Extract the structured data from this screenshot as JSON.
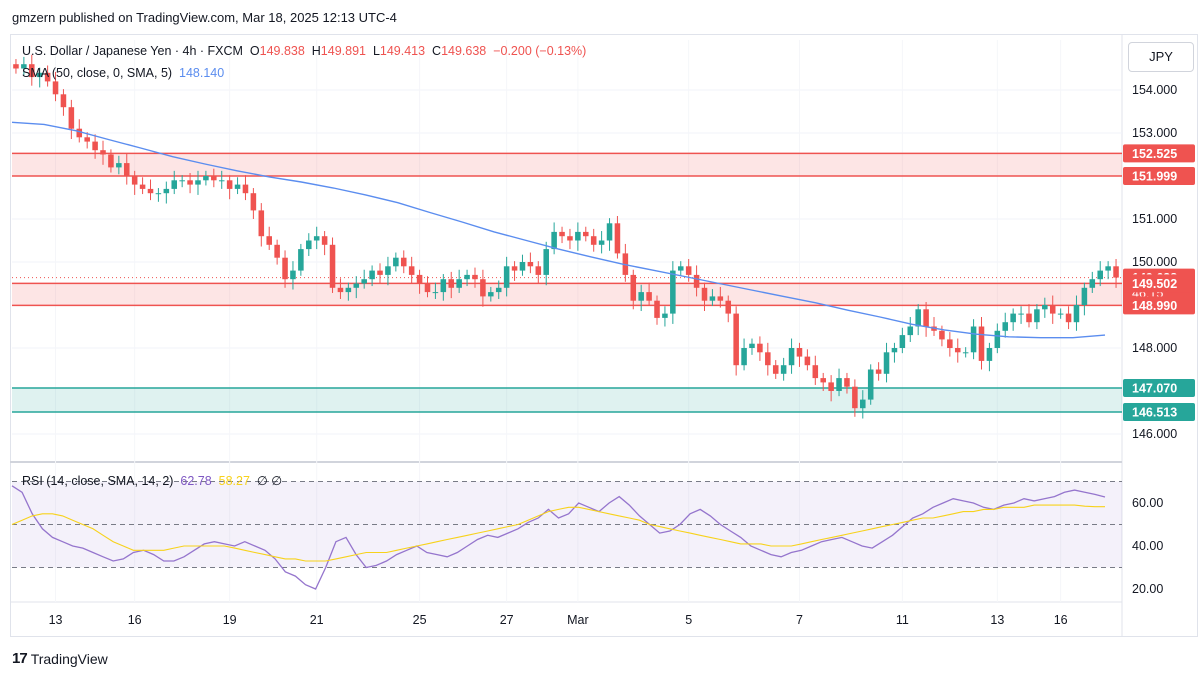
{
  "header": {
    "publisher": "gmzern",
    "text": "gmzern published on TradingView.com, Mar 18, 2025 12:13 UTC-4"
  },
  "legend": {
    "symbol": "U.S. Dollar / Japanese Yen · 4h · FXCM",
    "open_label": "O",
    "open": "149.838",
    "high_label": "H",
    "high": "149.891",
    "low_label": "L",
    "low": "149.413",
    "close_label": "C",
    "close": "149.638",
    "change": "−0.200 (−0.13%)",
    "sma_label": "SMA (50, close, 0, SMA, 5)",
    "sma_value": "148.140",
    "rsi_label": "RSI (14, close, SMA, 14, 2)",
    "rsi_value": "62.78",
    "rsi_ma_value": "58.27",
    "rsi_extra": "∅ ∅"
  },
  "currency": "JPY",
  "footer": {
    "brand": "TradingView",
    "logo_glyph": "17"
  },
  "colors": {
    "up": "#26a69a",
    "down": "#ef5350",
    "sma": "#5b8def",
    "rsi": "#9575cd",
    "rsi_ma": "#f7d21b",
    "resistance_zone": "#ef5350",
    "support_zone": "#26a69a"
  },
  "chart_data": [
    {
      "type": "candlestick",
      "title": "U.S. Dollar / Japanese Yen · 4h · FXCM",
      "ylim": [
        145.6,
        155.0
      ],
      "y_ticks": [
        "154.000",
        "153.000",
        "151.000",
        "150.000",
        "148.000",
        "146.000"
      ],
      "x_ticks": [
        "13",
        "16",
        "19",
        "21",
        "25",
        "27",
        "Mar",
        "5",
        "7",
        "11",
        "13",
        "16"
      ],
      "price_labels": [
        {
          "label": "152.525",
          "value": 152.525,
          "kind": "resistance"
        },
        {
          "label": "151.999",
          "value": 151.999,
          "kind": "resistance"
        },
        {
          "label": "149.638",
          "value": 149.638,
          "kind": "last",
          "countdown": "46:15"
        },
        {
          "label": "149.502",
          "value": 149.502,
          "kind": "resistance"
        },
        {
          "label": "148.990",
          "value": 148.99,
          "kind": "resistance"
        },
        {
          "label": "147.070",
          "value": 147.07,
          "kind": "support"
        },
        {
          "label": "146.513",
          "value": 146.513,
          "kind": "support"
        }
      ],
      "zones": [
        {
          "from": 151.999,
          "to": 152.525,
          "kind": "resistance"
        },
        {
          "from": 148.99,
          "to": 149.502,
          "kind": "resistance"
        },
        {
          "from": 146.513,
          "to": 147.07,
          "kind": "support"
        }
      ],
      "close": [
        154.5,
        154.6,
        154.3,
        154.4,
        154.2,
        153.9,
        153.6,
        153.1,
        152.9,
        152.8,
        152.6,
        152.5,
        152.2,
        152.3,
        152.0,
        151.8,
        151.7,
        151.6,
        151.6,
        151.7,
        151.9,
        151.9,
        151.8,
        151.9,
        152.0,
        151.9,
        151.9,
        151.7,
        151.8,
        151.6,
        151.2,
        150.6,
        150.4,
        150.1,
        149.6,
        149.8,
        150.3,
        150.5,
        150.6,
        150.4,
        149.4,
        149.3,
        149.4,
        149.5,
        149.6,
        149.8,
        149.7,
        149.9,
        150.1,
        149.9,
        149.7,
        149.5,
        149.3,
        149.3,
        149.6,
        149.4,
        149.6,
        149.7,
        149.6,
        149.2,
        149.3,
        149.4,
        149.9,
        149.8,
        150.0,
        149.9,
        149.7,
        150.3,
        150.7,
        150.6,
        150.5,
        150.7,
        150.6,
        150.4,
        150.5,
        150.9,
        150.2,
        149.7,
        149.1,
        149.3,
        149.1,
        148.7,
        148.8,
        149.8,
        149.9,
        149.7,
        149.4,
        149.1,
        149.2,
        149.1,
        148.8,
        147.6,
        148.0,
        148.1,
        147.9,
        147.6,
        147.4,
        147.6,
        148.0,
        147.8,
        147.6,
        147.3,
        147.2,
        147.0,
        147.3,
        147.1,
        146.6,
        146.8,
        147.5,
        147.4,
        147.9,
        148.0,
        148.3,
        148.5,
        148.9,
        148.5,
        148.4,
        148.2,
        148.0,
        147.9,
        147.9,
        148.5,
        147.7,
        148.0,
        148.4,
        148.6,
        148.8,
        148.8,
        148.6,
        148.9,
        149.0,
        148.8,
        148.8,
        148.6,
        149.0,
        149.4,
        149.6,
        149.8,
        149.9,
        149.638
      ],
      "sma": [
        153.25,
        153.2,
        153.05,
        152.85,
        152.65,
        152.45,
        152.28,
        152.12,
        151.98,
        151.86,
        151.72,
        151.56,
        151.38,
        151.15,
        150.93,
        150.7,
        150.5,
        150.3,
        150.12,
        149.95,
        149.8,
        149.65,
        149.5,
        149.35,
        149.2,
        149.05,
        148.88,
        148.72,
        148.55,
        148.42,
        148.32,
        148.26,
        148.24,
        148.24,
        148.3
      ],
      "sma_current": 148.14
    },
    {
      "type": "line",
      "title": "RSI (14, close, SMA, 14, 2)",
      "ylim": [
        15,
        75
      ],
      "y_ticks": [
        "60.00",
        "40.00",
        "20.00"
      ],
      "bands": {
        "upper": 70,
        "middle": 50,
        "lower": 30
      },
      "series": [
        {
          "name": "RSI",
          "values": [
            68,
            65,
            55,
            48,
            44,
            42,
            40,
            39,
            37,
            35,
            33,
            34,
            37,
            38,
            36,
            33,
            33,
            35,
            38,
            41,
            42,
            41,
            40,
            42,
            40,
            38,
            34,
            28,
            26,
            22,
            20,
            30,
            42,
            44,
            36,
            30,
            31,
            33,
            36,
            38,
            40,
            37,
            36,
            35,
            37,
            40,
            43,
            45,
            44,
            46,
            48,
            51,
            53,
            57,
            53,
            55,
            60,
            58,
            56,
            60,
            63,
            59,
            54,
            50,
            46,
            47,
            50,
            55,
            57,
            54,
            50,
            47,
            44,
            40,
            38,
            36,
            35,
            37,
            38,
            40,
            42,
            43,
            44,
            42,
            40,
            39,
            42,
            45,
            49,
            53,
            55,
            58,
            60,
            62,
            61,
            60,
            58,
            57,
            59,
            60,
            62,
            61,
            62,
            63,
            65,
            66,
            65,
            64,
            62.78
          ]
        },
        {
          "name": "RSI-based MA",
          "values": [
            50,
            52,
            54,
            55,
            55,
            54,
            52,
            50,
            48,
            45,
            42,
            40,
            38,
            38,
            38,
            38,
            39,
            40,
            40,
            40,
            40,
            40,
            39,
            38,
            37,
            36,
            35,
            34,
            34,
            33,
            33,
            33,
            34,
            35,
            36,
            37,
            37,
            37,
            38,
            39,
            40,
            41,
            42,
            43,
            44,
            45,
            46,
            47,
            48,
            49,
            50,
            52,
            54,
            56,
            57,
            58,
            58,
            57,
            56,
            55,
            54,
            53,
            52,
            50,
            49,
            48,
            47,
            46,
            45,
            44,
            43,
            42,
            41,
            41,
            41,
            40,
            40,
            40,
            41,
            42,
            43,
            44,
            45,
            46,
            47,
            48,
            49,
            50,
            51,
            52,
            53,
            53,
            54,
            55,
            56,
            56,
            57,
            57,
            58,
            58,
            58,
            59,
            59,
            59,
            59,
            59,
            58.5,
            58.3,
            58.27
          ]
        }
      ]
    }
  ]
}
